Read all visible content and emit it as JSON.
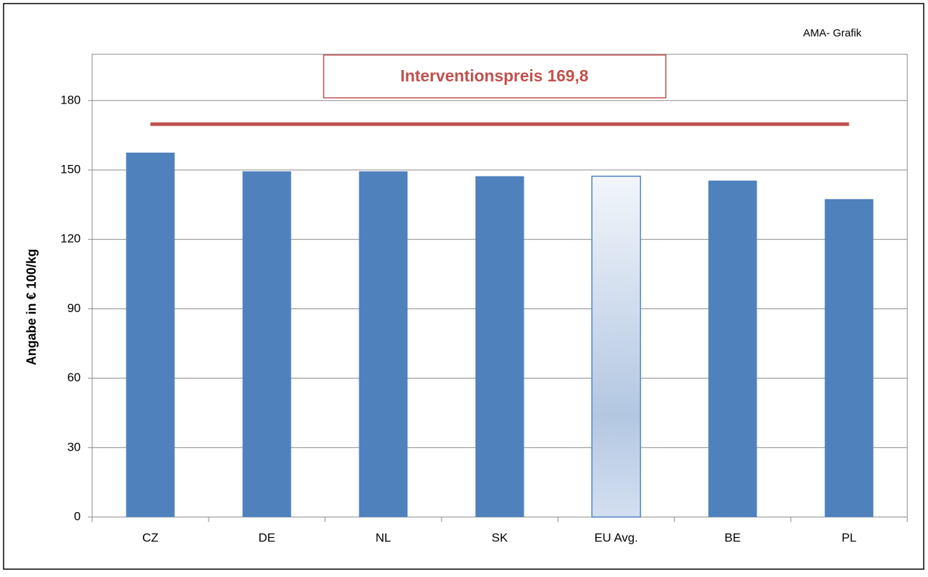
{
  "chart_data": {
    "type": "bar",
    "source": "AMA- Grafik",
    "y_label": "Angabe in € 100/kg",
    "categories": [
      "CZ",
      "DE",
      "NL",
      "SK",
      "EU Avg.",
      "BE",
      "PL"
    ],
    "values": [
      157.5,
      149.4,
      149.4,
      147.3,
      147.3,
      145.4,
      137.4
    ],
    "color": "#4f81bd",
    "highlight_index": 4,
    "ylim": [
      0,
      200
    ],
    "yticks": [
      0,
      30,
      60,
      90,
      120,
      150,
      180
    ],
    "grid": true,
    "reference_line": {
      "value": 169.8,
      "label": "Interventionspreis 169,8",
      "color": "#c0504d"
    }
  }
}
